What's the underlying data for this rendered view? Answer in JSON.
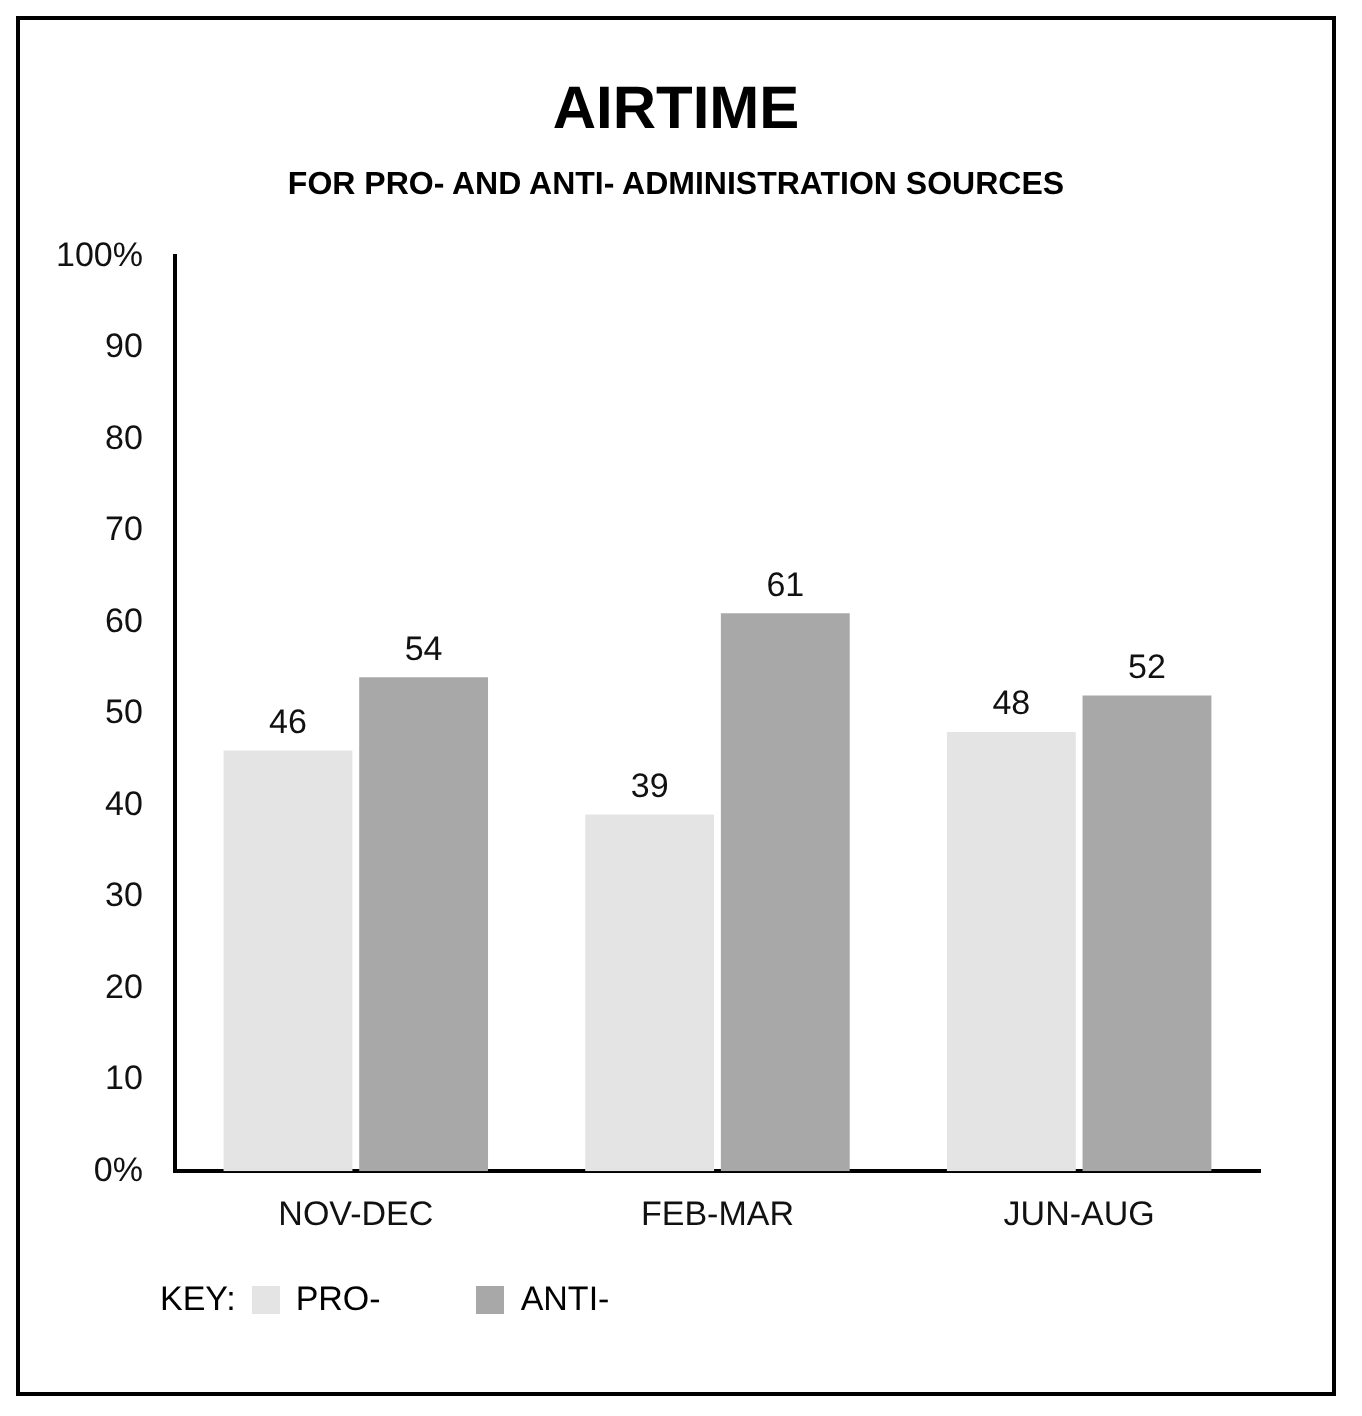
{
  "chart_data": {
    "type": "bar",
    "title": "AIRTIME",
    "subtitle": "FOR PRO- AND ANTI- ADMINISTRATION SOURCES",
    "categories": [
      "NOV-DEC",
      "FEB-MAR",
      "JUN-AUG"
    ],
    "series": [
      {
        "name": "PRO-",
        "color": "#e4e4e4",
        "values": [
          46,
          39,
          48
        ]
      },
      {
        "name": "ANTI-",
        "color": "#a8a8a8",
        "values": [
          54,
          61,
          52
        ]
      }
    ],
    "ylim": [
      0,
      100
    ],
    "yticks": [
      {
        "value": 0,
        "label": "0%"
      },
      10,
      20,
      30,
      40,
      50,
      60,
      70,
      80,
      90,
      {
        "value": 100,
        "label": "100%"
      }
    ],
    "grid": false,
    "data_labels": true,
    "legend": "bottom left",
    "legend_title": "KEY:"
  }
}
